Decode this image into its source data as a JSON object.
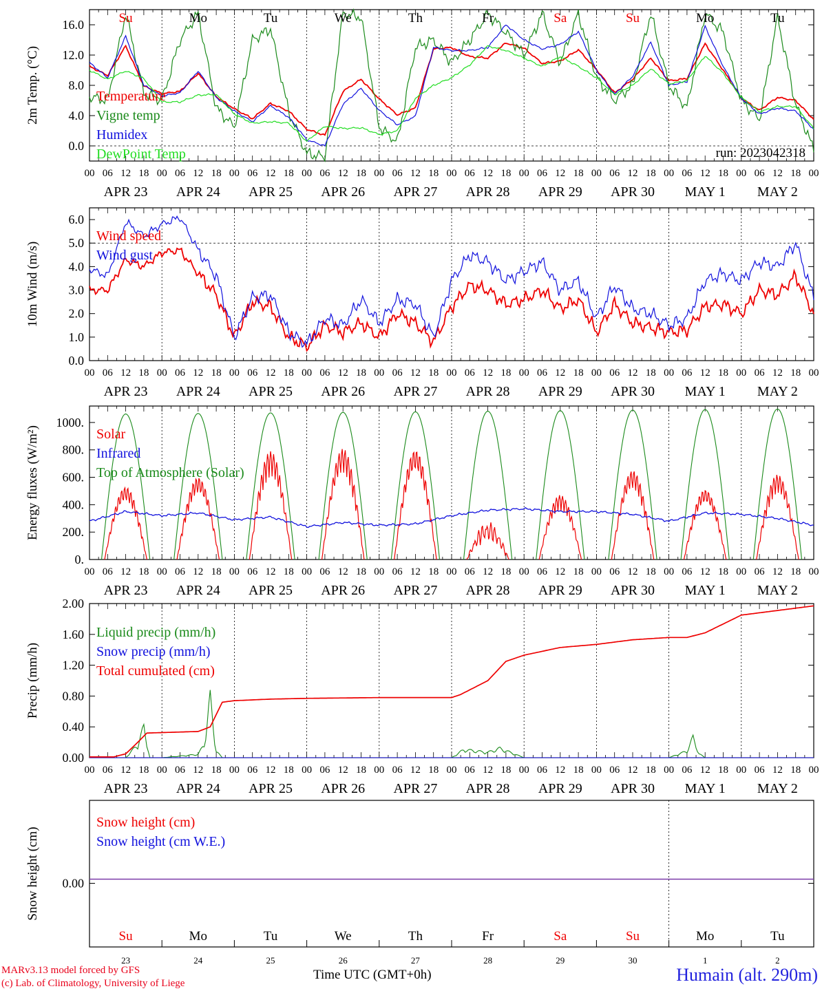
{
  "meta": {
    "run_label": "run: 2023042318",
    "model_credit": "MARv3.13 model forced by GFS",
    "institution_credit": "(c) Lab. of Climatology, University of Liege",
    "time_axis_label": "Time UTC (GMT+0h)",
    "station_label": "Humain (alt. 290m)"
  },
  "colors": {
    "red": "#ee0000",
    "green": "#1a8a1a",
    "blue": "#1111dd",
    "lightgreen": "#22dd22",
    "purple": "#7a3aa8",
    "axis": "#000000"
  },
  "shared_axis": {
    "hour_ticks": [
      "00",
      "06",
      "12",
      "18"
    ],
    "final_hour_tick": "00",
    "dates": [
      "APR 23",
      "APR 24",
      "APR 25",
      "APR 26",
      "APR 27",
      "APR 28",
      "APR 29",
      "APR 30",
      "MAY  1",
      "MAY  2"
    ],
    "weekdays": [
      "Su",
      "Mo",
      "Tu",
      "We",
      "Th",
      "Fr",
      "Sa",
      "Su",
      "Mo",
      "Tu"
    ],
    "weekday_colors": [
      "red",
      "black",
      "black",
      "black",
      "black",
      "black",
      "red",
      "red",
      "black",
      "black"
    ],
    "day_numbers": [
      "23",
      "24",
      "25",
      "26",
      "27",
      "28",
      "29",
      "30",
      "1",
      "2"
    ]
  },
  "chart_data": [
    {
      "type": "line",
      "id": "temperature",
      "ylabel": "2m Temp. (°C)",
      "ylim": [
        -2,
        18
      ],
      "yticks": [
        "0.0",
        "4.0",
        "8.0",
        "12.0",
        "16.0"
      ],
      "ytick_values": [
        0,
        4,
        8,
        12,
        16
      ],
      "ref_line": 0,
      "x_unit": "hours since APR 23 00 UTC",
      "series": [
        {
          "name": "Temperature",
          "color": "red",
          "x": [
            0,
            6,
            12,
            18,
            24,
            30,
            36,
            42,
            48,
            54,
            60,
            66,
            72,
            78,
            84,
            90,
            96,
            102,
            108,
            114,
            120,
            126,
            132,
            138,
            144,
            150,
            156,
            162,
            168,
            174,
            180,
            186,
            192,
            198,
            204,
            210,
            216,
            222,
            228,
            234,
            240
          ],
          "y": [
            10.5,
            9.3,
            13.2,
            7.9,
            6.9,
            7.2,
            9.6,
            6.5,
            4.9,
            3.6,
            5.6,
            4.6,
            2.2,
            1.4,
            7.2,
            8.8,
            6.2,
            4.1,
            5.0,
            12.8,
            13.0,
            11.8,
            11.6,
            13.6,
            12.9,
            10.9,
            11.2,
            12.7,
            10.1,
            7.0,
            8.8,
            11.6,
            8.6,
            8.9,
            13.5,
            10.0,
            6.3,
            4.7,
            6.4,
            6.0,
            3.5
          ]
        },
        {
          "name": "Vigne temp",
          "color": "green",
          "x": [
            0,
            6,
            12,
            18,
            24,
            30,
            36,
            42,
            48,
            54,
            60,
            66,
            72,
            78,
            84,
            90,
            96,
            102,
            108,
            114,
            120,
            126,
            132,
            138,
            144,
            150,
            156,
            162,
            168,
            174,
            180,
            186,
            192,
            198,
            204,
            210,
            216,
            222,
            228,
            234,
            240
          ],
          "y": [
            6.5,
            6.0,
            17.5,
            7.0,
            6.0,
            14.0,
            17.5,
            5.0,
            2.5,
            14.0,
            15.5,
            4.5,
            -1.0,
            -1.5,
            17.5,
            17.0,
            2.5,
            0.5,
            13.0,
            14.0,
            11.0,
            14.0,
            17.5,
            15.0,
            12.0,
            17.5,
            11.0,
            17.5,
            9.0,
            6.0,
            8.0,
            17.5,
            8.0,
            5.0,
            17.5,
            15.0,
            6.0,
            3.5,
            17.0,
            5.5,
            -0.5
          ]
        },
        {
          "name": "Humidex",
          "color": "blue",
          "x": [
            0,
            6,
            12,
            18,
            24,
            30,
            36,
            42,
            48,
            54,
            60,
            66,
            72,
            78,
            84,
            90,
            96,
            102,
            108,
            114,
            120,
            126,
            132,
            138,
            144,
            150,
            156,
            162,
            168,
            174,
            180,
            186,
            192,
            198,
            204,
            210,
            216,
            222,
            228,
            234,
            240
          ],
          "y": [
            11.0,
            9.0,
            14.5,
            8.0,
            6.6,
            7.0,
            9.9,
            6.4,
            4.6,
            3.2,
            5.3,
            3.8,
            0.8,
            0.0,
            5.5,
            7.6,
            4.7,
            2.8,
            3.9,
            13.0,
            12.6,
            12.6,
            13.0,
            16.0,
            14.0,
            12.8,
            13.4,
            15.1,
            10.0,
            6.8,
            9.2,
            13.7,
            8.0,
            8.5,
            15.8,
            10.5,
            6.3,
            4.2,
            5.0,
            4.6,
            2.2
          ]
        },
        {
          "name": "DewPoint Temp",
          "color": "lightgreen",
          "x": [
            0,
            6,
            12,
            18,
            24,
            30,
            36,
            42,
            48,
            54,
            60,
            66,
            72,
            78,
            84,
            90,
            96,
            102,
            108,
            114,
            120,
            126,
            132,
            138,
            144,
            150,
            156,
            162,
            168,
            174,
            180,
            186,
            192,
            198,
            204,
            210,
            216,
            222,
            228,
            234,
            240
          ],
          "y": [
            10.0,
            8.8,
            9.9,
            8.9,
            5.8,
            5.8,
            6.7,
            6.8,
            4.2,
            3.0,
            3.2,
            3.0,
            0.6,
            2.6,
            2.3,
            2.4,
            1.5,
            2.0,
            6.3,
            8.0,
            9.0,
            10.7,
            13.2,
            12.6,
            11.6,
            10.5,
            11.8,
            10.5,
            9.0,
            6.8,
            8.0,
            10.2,
            8.2,
            8.6,
            11.9,
            9.6,
            6.4,
            4.5,
            5.2,
            5.2,
            2.3
          ]
        }
      ],
      "legend": [
        "Temperature",
        "Vigne temp",
        "Humidex",
        "DewPoint Temp"
      ]
    },
    {
      "type": "line",
      "id": "wind",
      "ylabel": "10m Wind (m/s)",
      "ylim": [
        0,
        6.5
      ],
      "yticks": [
        "0.0",
        "1.0",
        "2.0",
        "3.0",
        "4.0",
        "5.0",
        "6.0"
      ],
      "ytick_values": [
        0,
        1,
        2,
        3,
        4,
        5,
        6
      ],
      "ref_line": 5,
      "x_unit": "hours since APR 23 00 UTC",
      "series": [
        {
          "name": "Wind speed",
          "color": "red",
          "x": [
            0,
            6,
            12,
            18,
            24,
            30,
            36,
            42,
            48,
            54,
            60,
            66,
            72,
            78,
            84,
            90,
            96,
            102,
            108,
            114,
            120,
            126,
            132,
            138,
            144,
            150,
            156,
            162,
            168,
            174,
            180,
            186,
            192,
            198,
            204,
            210,
            216,
            222,
            228,
            234,
            240
          ],
          "y": [
            3.0,
            3.0,
            4.3,
            4.0,
            4.6,
            4.7,
            3.7,
            2.8,
            1.0,
            2.5,
            2.3,
            1.0,
            0.6,
            1.5,
            1.2,
            1.6,
            1.0,
            2.0,
            1.6,
            0.8,
            2.3,
            3.2,
            3.0,
            2.4,
            2.6,
            3.0,
            2.2,
            2.6,
            1.2,
            2.4,
            1.6,
            1.4,
            1.2,
            1.3,
            2.3,
            2.4,
            2.0,
            3.0,
            2.8,
            3.6,
            2.0
          ]
        },
        {
          "name": "Wind gust",
          "color": "blue",
          "x": [
            0,
            6,
            12,
            18,
            24,
            30,
            36,
            42,
            48,
            54,
            60,
            66,
            72,
            78,
            84,
            90,
            96,
            102,
            108,
            114,
            120,
            126,
            132,
            138,
            144,
            150,
            156,
            162,
            168,
            174,
            180,
            186,
            192,
            198,
            204,
            210,
            216,
            222,
            228,
            234,
            240
          ],
          "y": [
            3.9,
            3.6,
            5.9,
            5.3,
            5.8,
            6.1,
            4.7,
            3.6,
            1.0,
            2.7,
            2.8,
            1.2,
            0.7,
            1.8,
            1.5,
            2.6,
            1.6,
            2.6,
            2.4,
            1.0,
            3.4,
            4.5,
            4.2,
            3.4,
            3.8,
            4.2,
            3.0,
            3.4,
            1.8,
            3.2,
            2.2,
            2.0,
            1.5,
            1.8,
            3.4,
            3.7,
            3.4,
            4.2,
            4.0,
            5.0,
            2.7
          ]
        }
      ],
      "legend": [
        "Wind speed",
        "Wind gust"
      ]
    },
    {
      "type": "line",
      "id": "energy",
      "ylabel": "Energy fluxes (W/m²)",
      "ylim": [
        0,
        1120
      ],
      "yticks": [
        "0.",
        "200.",
        "400.",
        "600.",
        "800.",
        "1000."
      ],
      "ytick_values": [
        0,
        200,
        400,
        600,
        800,
        1000
      ],
      "toa_peaks": [
        1062,
        1066,
        1070,
        1074,
        1078,
        1082,
        1086,
        1090,
        1094,
        1098
      ],
      "solar_peaks": [
        530,
        600,
        790,
        810,
        800,
        280,
        470,
        650,
        510,
        620
      ],
      "infrared_profile": {
        "x": [
          0,
          12,
          24,
          36,
          48,
          60,
          72,
          84,
          96,
          108,
          120,
          132,
          144,
          156,
          168,
          180,
          192,
          204,
          216,
          228,
          240
        ],
        "y": [
          280,
          350,
          320,
          340,
          290,
          310,
          240,
          270,
          250,
          260,
          320,
          360,
          370,
          350,
          350,
          330,
          280,
          340,
          330,
          300,
          250
        ]
      },
      "series": [
        {
          "name": "Solar",
          "color": "red"
        },
        {
          "name": "Infrared",
          "color": "blue"
        },
        {
          "name": "Top of Atmosphere (Solar)",
          "color": "green"
        }
      ],
      "legend": [
        "Solar",
        "Infrared",
        "Top of Atmosphere (Solar)"
      ]
    },
    {
      "type": "line",
      "id": "precip",
      "ylabel": "Precip (mm/h)",
      "ylim": [
        0,
        2.0
      ],
      "yticks": [
        "0.00",
        "0.40",
        "0.80",
        "1.20",
        "1.60",
        "2.00"
      ],
      "ytick_values": [
        0,
        0.4,
        0.8,
        1.2,
        1.6,
        2.0
      ],
      "series": [
        {
          "name": "Liquid precip (mm/h)",
          "color": "green",
          "x": [
            0,
            12,
            14,
            16,
            18,
            20,
            24,
            36,
            38,
            40,
            42,
            44,
            48,
            120,
            124,
            132,
            136,
            144,
            192,
            198,
            200,
            202,
            204,
            240
          ],
          "y": [
            0.0,
            0.0,
            0.1,
            0.2,
            0.45,
            0.0,
            0.0,
            0.05,
            0.2,
            0.88,
            0.1,
            0.0,
            0.0,
            0.0,
            0.12,
            0.08,
            0.14,
            0.0,
            0.0,
            0.1,
            0.3,
            0.06,
            0.0,
            0.0
          ]
        },
        {
          "name": "Snow precip (mm/h)",
          "color": "blue",
          "x": [
            0,
            240
          ],
          "y": [
            0,
            0
          ]
        },
        {
          "name": "Total cumulated (cm)",
          "color": "red",
          "x": [
            0,
            8,
            12,
            16,
            19,
            36,
            40,
            44,
            48,
            60,
            72,
            96,
            120,
            123,
            132,
            138,
            144,
            156,
            168,
            180,
            192,
            198,
            204,
            216,
            240
          ],
          "y": [
            0.01,
            0.01,
            0.05,
            0.2,
            0.32,
            0.34,
            0.4,
            0.72,
            0.74,
            0.76,
            0.77,
            0.78,
            0.78,
            0.82,
            1.0,
            1.25,
            1.33,
            1.43,
            1.47,
            1.53,
            1.56,
            1.56,
            1.62,
            1.85,
            1.97
          ]
        }
      ],
      "legend": [
        "Liquid precip (mm/h)",
        "Snow precip (mm/h)",
        "Total cumulated (cm)"
      ]
    },
    {
      "type": "line",
      "id": "snow",
      "ylabel": "Snow height (cm)",
      "yticks": [
        "0.00"
      ],
      "ytick_values": [
        0
      ],
      "series": [
        {
          "name": "Snow height (cm)",
          "color": "red",
          "x": [
            0,
            240
          ],
          "y": [
            0,
            0
          ]
        },
        {
          "name": "Snow height (cm W.E.)",
          "color": "blue",
          "x": [
            0,
            240
          ],
          "y": [
            0,
            0
          ]
        }
      ],
      "legend": [
        "Snow height (cm)",
        "Snow height (cm W.E.)"
      ]
    }
  ]
}
